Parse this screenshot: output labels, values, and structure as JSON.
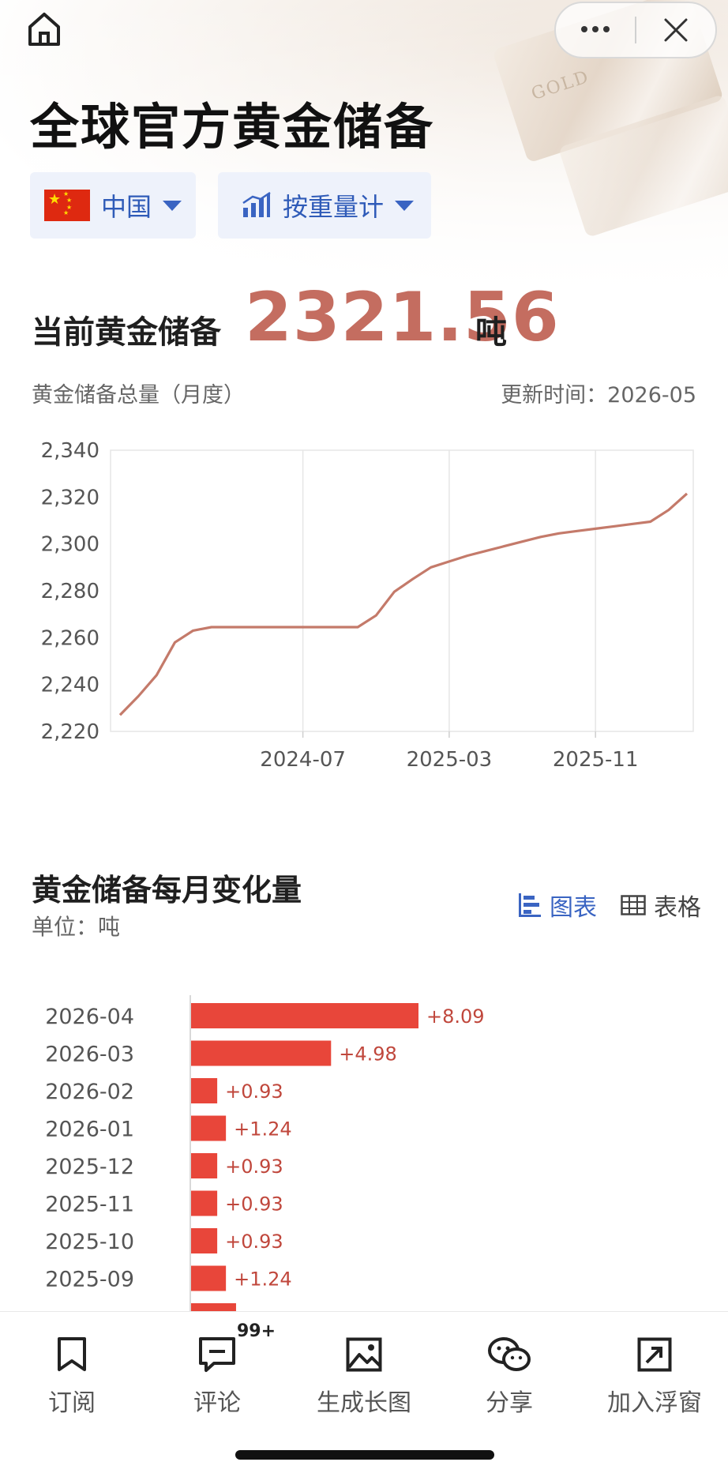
{
  "header": {
    "title": "全球官方黄金储备",
    "home_icon": "home-icon",
    "more_icon": "more-icon",
    "close_icon": "close-icon",
    "bg_bar_text": "GOLD"
  },
  "selectors": {
    "country": {
      "label": "中国",
      "icon": "china-flag-icon"
    },
    "metric": {
      "label": "按重量计",
      "icon": "bar-chart-icon"
    }
  },
  "current": {
    "label": "当前黄金储备",
    "value": "2321.56",
    "unit": "吨",
    "accent_color": "#c46d60"
  },
  "line_section": {
    "title": "黄金储备总量（月度）",
    "update_time": "更新时间：2026-05"
  },
  "bar_section": {
    "title": "黄金储备每月变化量",
    "unit": "单位：吨",
    "view_chart_label": "图表",
    "view_table_label": "表格"
  },
  "chart_data": [
    {
      "type": "line",
      "title": "",
      "xlabel": "",
      "ylabel": "",
      "ylim": [
        2220,
        2340
      ],
      "y_ticks": [
        "2,340",
        "2,320",
        "2,300",
        "2,280",
        "2,260",
        "2,240",
        "2,220"
      ],
      "x_ticks": [
        "2024-07",
        "2025-03",
        "2025-11"
      ],
      "x": [
        "2023-09",
        "2023-10",
        "2023-11",
        "2023-12",
        "2024-01",
        "2024-02",
        "2024-03",
        "2024-04",
        "2024-05",
        "2024-06",
        "2024-07",
        "2024-08",
        "2024-09",
        "2024-10",
        "2024-11",
        "2024-12",
        "2025-01",
        "2025-02",
        "2025-03",
        "2025-04",
        "2025-05",
        "2025-06",
        "2025-07",
        "2025-08",
        "2025-09",
        "2025-10",
        "2025-11",
        "2025-12",
        "2026-01",
        "2026-02",
        "2026-03",
        "2026-04"
      ],
      "series": [
        {
          "color": "#c47a6a",
          "values": [
            2227,
            2235,
            2244,
            2258,
            2263,
            2264.5,
            2264.5,
            2264.5,
            2264.5,
            2264.5,
            2264.5,
            2264.5,
            2264.5,
            2264.5,
            2269.5,
            2279.6,
            2285,
            2290,
            2292.5,
            2295,
            2297,
            2299,
            2301,
            2303,
            2304.5,
            2305.5,
            2306.5,
            2307.5,
            2308.5,
            2309.5,
            2314.5,
            2321.5
          ]
        }
      ],
      "grid": true
    },
    {
      "type": "bar",
      "orientation": "horizontal",
      "color": "#e8463a",
      "label_color": "#c0473c",
      "categories": [
        "2026-04",
        "2026-03",
        "2026-02",
        "2026-01",
        "2025-12",
        "2025-11",
        "2025-10",
        "2025-09"
      ],
      "values": [
        8.09,
        4.98,
        0.93,
        1.24,
        0.93,
        0.93,
        0.93,
        1.24
      ],
      "value_labels": [
        "+8.09",
        "+4.98",
        "+0.93",
        "+1.24",
        "+0.93",
        "+0.93",
        "+0.93",
        "+1.24"
      ]
    }
  ],
  "bottom_nav": [
    {
      "label": "订阅",
      "icon": "bookmark-icon"
    },
    {
      "label": "评论",
      "icon": "comment-icon",
      "badge": "99+"
    },
    {
      "label": "生成长图",
      "icon": "image-icon"
    },
    {
      "label": "分享",
      "icon": "wechat-icon"
    },
    {
      "label": "加入浮窗",
      "icon": "float-window-icon"
    }
  ]
}
